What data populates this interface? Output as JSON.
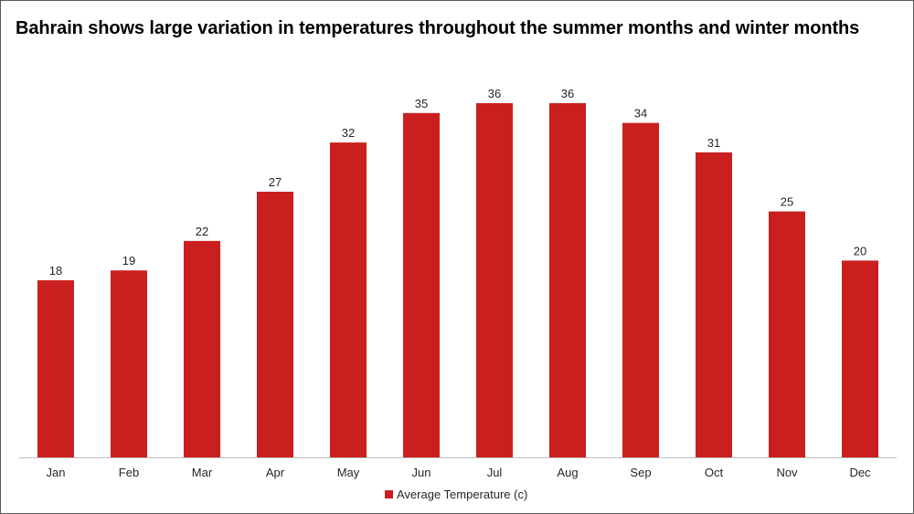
{
  "chart_data": {
    "type": "bar",
    "title": "Bahrain shows large variation in temperatures throughout the summer months and winter months",
    "categories": [
      "Jan",
      "Feb",
      "Mar",
      "Apr",
      "May",
      "Jun",
      "Jul",
      "Aug",
      "Sep",
      "Oct",
      "Nov",
      "Dec"
    ],
    "series": [
      {
        "name": "Average Temperature (c)",
        "values": [
          18,
          19,
          22,
          27,
          32,
          35,
          36,
          36,
          34,
          31,
          25,
          20
        ],
        "color": "#c9201f"
      }
    ],
    "data_labels": [
      "18",
      "19",
      "22",
      "27",
      "32",
      "35",
      "36",
      "36",
      "34",
      "31",
      "25",
      "20"
    ],
    "xlabel": "",
    "ylabel": "",
    "ylim": [
      0,
      36
    ],
    "grid": false,
    "legend_position": "bottom-center"
  }
}
